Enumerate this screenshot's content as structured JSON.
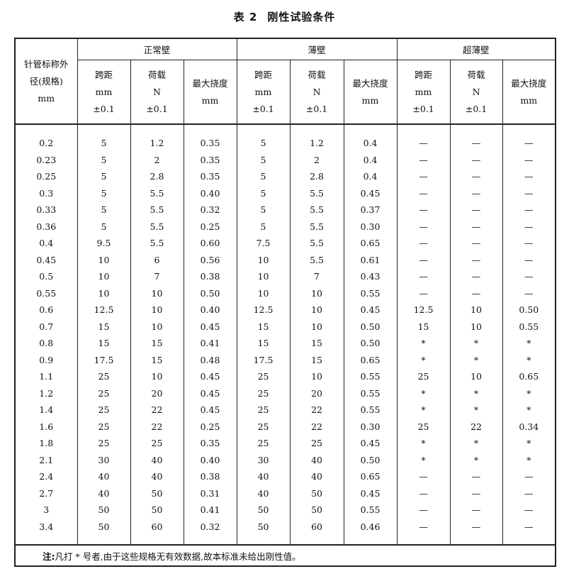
{
  "title": {
    "label": "表 2",
    "text": "刚性试验条件"
  },
  "header": {
    "spec": [
      "针管标称外",
      "径(规格)",
      "mm"
    ],
    "groups": [
      "正常壁",
      "薄壁",
      "超薄壁"
    ],
    "sub": [
      {
        "l1": "跨距",
        "l2": "mm",
        "l3": "±0.1"
      },
      {
        "l1": "荷载",
        "l2": "N",
        "l3": "±0.1"
      },
      {
        "l1": "最大挠度",
        "l2": "mm",
        "l3": ""
      }
    ]
  },
  "rows": [
    [
      "0.2",
      "5",
      "1.2",
      "0.35",
      "5",
      "1.2",
      "0.4",
      "—",
      "—",
      "—"
    ],
    [
      "0.23",
      "5",
      "2",
      "0.35",
      "5",
      "2",
      "0.4",
      "—",
      "—",
      "—"
    ],
    [
      "0.25",
      "5",
      "2.8",
      "0.35",
      "5",
      "2.8",
      "0.4",
      "—",
      "—",
      "—"
    ],
    [
      "0.3",
      "5",
      "5.5",
      "0.40",
      "5",
      "5.5",
      "0.45",
      "—",
      "—",
      "—"
    ],
    [
      "0.33",
      "5",
      "5.5",
      "0.32",
      "5",
      "5.5",
      "0.37",
      "—",
      "—",
      "—"
    ],
    [
      "0.36",
      "5",
      "5.5",
      "0.25",
      "5",
      "5.5",
      "0.30",
      "—",
      "—",
      "—"
    ],
    [
      "0.4",
      "9.5",
      "5.5",
      "0.60",
      "7.5",
      "5.5",
      "0.65",
      "—",
      "—",
      "—"
    ],
    [
      "0.45",
      "10",
      "6",
      "0.56",
      "10",
      "5.5",
      "0.61",
      "—",
      "—",
      "—"
    ],
    [
      "0.5",
      "10",
      "7",
      "0.38",
      "10",
      "7",
      "0.43",
      "—",
      "—",
      "—"
    ],
    [
      "0.55",
      "10",
      "10",
      "0.50",
      "10",
      "10",
      "0.55",
      "—",
      "—",
      "—"
    ],
    [
      "0.6",
      "12.5",
      "10",
      "0.40",
      "12.5",
      "10",
      "0.45",
      "12.5",
      "10",
      "0.50"
    ],
    [
      "0.7",
      "15",
      "10",
      "0.45",
      "15",
      "10",
      "0.50",
      "15",
      "10",
      "0.55"
    ],
    [
      "0.8",
      "15",
      "15",
      "0.41",
      "15",
      "15",
      "0.50",
      "*",
      "*",
      "*"
    ],
    [
      "0.9",
      "17.5",
      "15",
      "0.48",
      "17.5",
      "15",
      "0.65",
      "*",
      "*",
      "*"
    ],
    [
      "1.1",
      "25",
      "10",
      "0.45",
      "25",
      "10",
      "0.55",
      "25",
      "10",
      "0.65"
    ],
    [
      "1.2",
      "25",
      "20",
      "0.45",
      "25",
      "20",
      "0.55",
      "*",
      "*",
      "*"
    ],
    [
      "1.4",
      "25",
      "22",
      "0.45",
      "25",
      "22",
      "0.55",
      "*",
      "*",
      "*"
    ],
    [
      "1.6",
      "25",
      "22",
      "0.25",
      "25",
      "22",
      "0.30",
      "25",
      "22",
      "0.34"
    ],
    [
      "1.8",
      "25",
      "25",
      "0.35",
      "25",
      "25",
      "0.45",
      "*",
      "*",
      "*"
    ],
    [
      "2.1",
      "30",
      "40",
      "0.40",
      "30",
      "40",
      "0.50",
      "*",
      "*",
      "*"
    ],
    [
      "2.4",
      "40",
      "40",
      "0.38",
      "40",
      "40",
      "0.65",
      "—",
      "—",
      "—"
    ],
    [
      "2.7",
      "40",
      "50",
      "0.31",
      "40",
      "50",
      "0.45",
      "—",
      "—",
      "—"
    ],
    [
      "3",
      "50",
      "50",
      "0.41",
      "50",
      "50",
      "0.55",
      "—",
      "—",
      "—"
    ],
    [
      "3.4",
      "50",
      "60",
      "0.32",
      "50",
      "60",
      "0.46",
      "—",
      "—",
      "—"
    ]
  ],
  "note": {
    "label": "注:",
    "text": "凡打 * 号者,由于这些规格无有效数据,故本标准未给出刚性值。"
  }
}
